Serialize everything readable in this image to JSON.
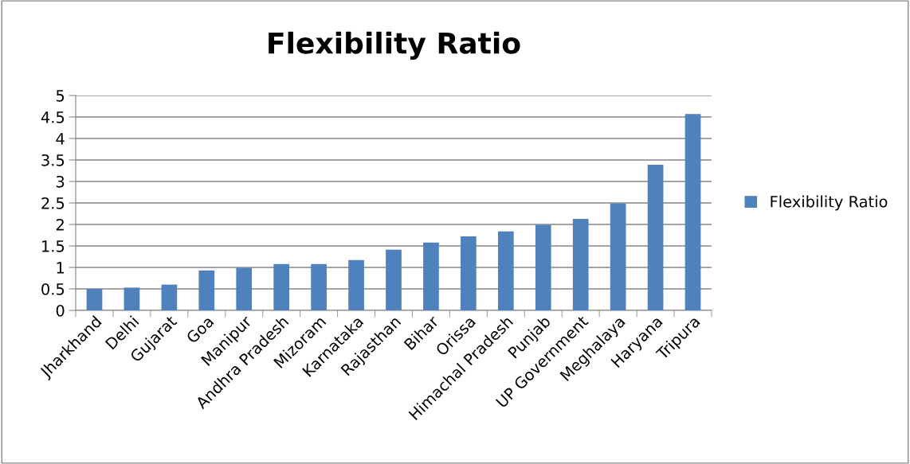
{
  "chart_data": {
    "type": "bar",
    "title": "Flexibility Ratio",
    "categories": [
      "Jharkhand",
      "Delhi",
      "Gujarat",
      "Goa",
      "Manipur",
      "Andhra Pradesh",
      "Mizoram",
      "Karnataka",
      "Rajasthan",
      "Bihar",
      "Orissa",
      "Himachal Pradesh",
      "Punjab",
      "UP Government",
      "Meghalaya",
      "Haryana",
      "Tripura"
    ],
    "series": [
      {
        "name": "Flexibility Ratio",
        "color": "#4f81bd",
        "values": [
          0.5,
          0.53,
          0.6,
          0.93,
          0.99,
          1.08,
          1.08,
          1.17,
          1.41,
          1.58,
          1.72,
          1.84,
          1.99,
          2.13,
          2.49,
          3.39,
          4.57
        ]
      }
    ],
    "ylim": [
      0,
      5
    ],
    "yticks": [
      0,
      0.5,
      1,
      1.5,
      2,
      2.5,
      3,
      3.5,
      4,
      4.5,
      5
    ],
    "grid": "y",
    "legend": "right"
  }
}
